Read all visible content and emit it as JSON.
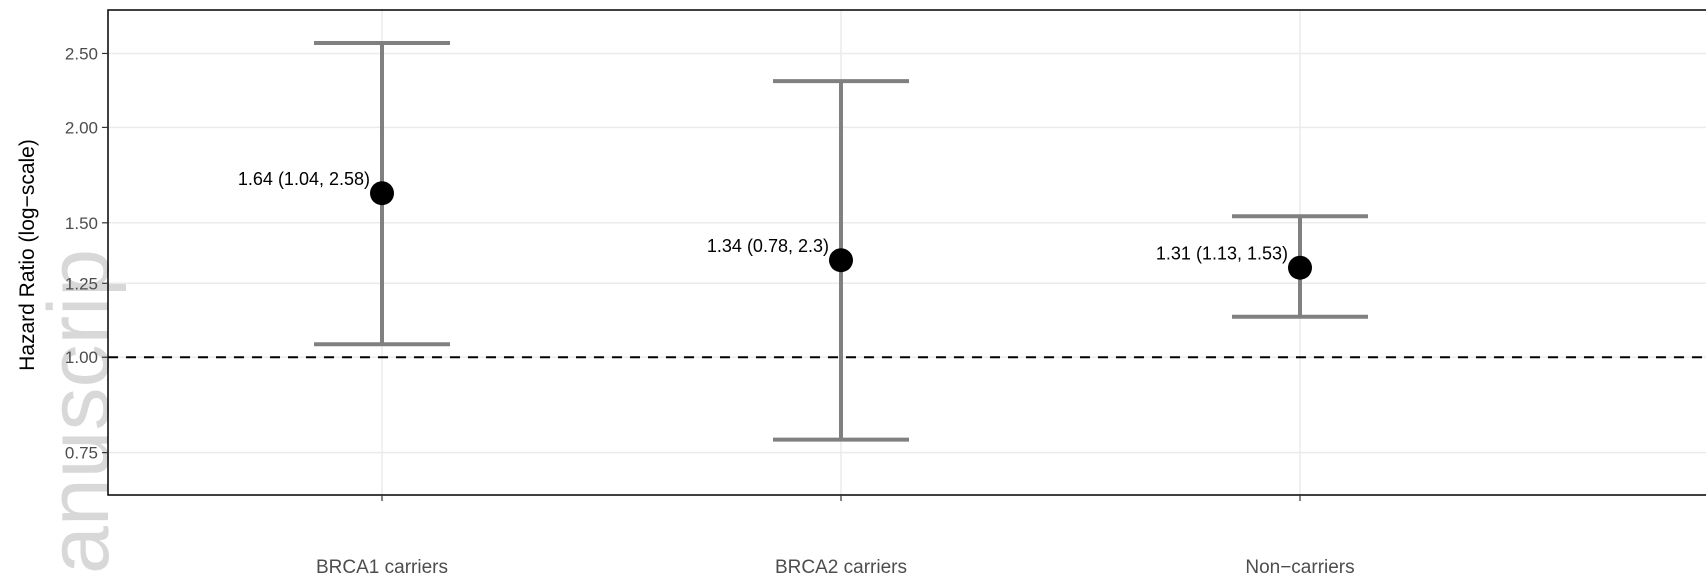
{
  "watermark": "anuscrip",
  "chart_data": {
    "type": "errorbar",
    "title": "",
    "xlabel": "",
    "ylabel": "Hazard Ratio (log−scale)",
    "y_scale": "log",
    "ylim": [
      0.66,
      2.85
    ],
    "y_ticks": [
      0.75,
      1.0,
      1.25,
      1.5,
      2.0,
      2.5
    ],
    "y_tick_labels": [
      "0.75",
      "1.00",
      "1.25",
      "1.50",
      "2.00",
      "2.50"
    ],
    "reference_line": 1.0,
    "grid": true,
    "categories": [
      "BRCA1 carriers",
      "BRCA2 carriers",
      "Non−carriers"
    ],
    "points": [
      {
        "category": "BRCA1 carriers",
        "hr": 1.64,
        "lower": 1.04,
        "upper": 2.58,
        "label": "1.64 (1.04, 2.58)"
      },
      {
        "category": "BRCA2 carriers",
        "hr": 1.34,
        "lower": 0.78,
        "upper": 2.3,
        "label": "1.34 (0.78, 2.3)"
      },
      {
        "category": "Non−carriers",
        "hr": 1.31,
        "lower": 1.13,
        "upper": 1.53,
        "label": "1.31 (1.13, 1.53)"
      }
    ],
    "colors": {
      "errorbar": "#808080",
      "point": "#000000",
      "grid": "#ebebeb",
      "axis": "#000000"
    }
  }
}
